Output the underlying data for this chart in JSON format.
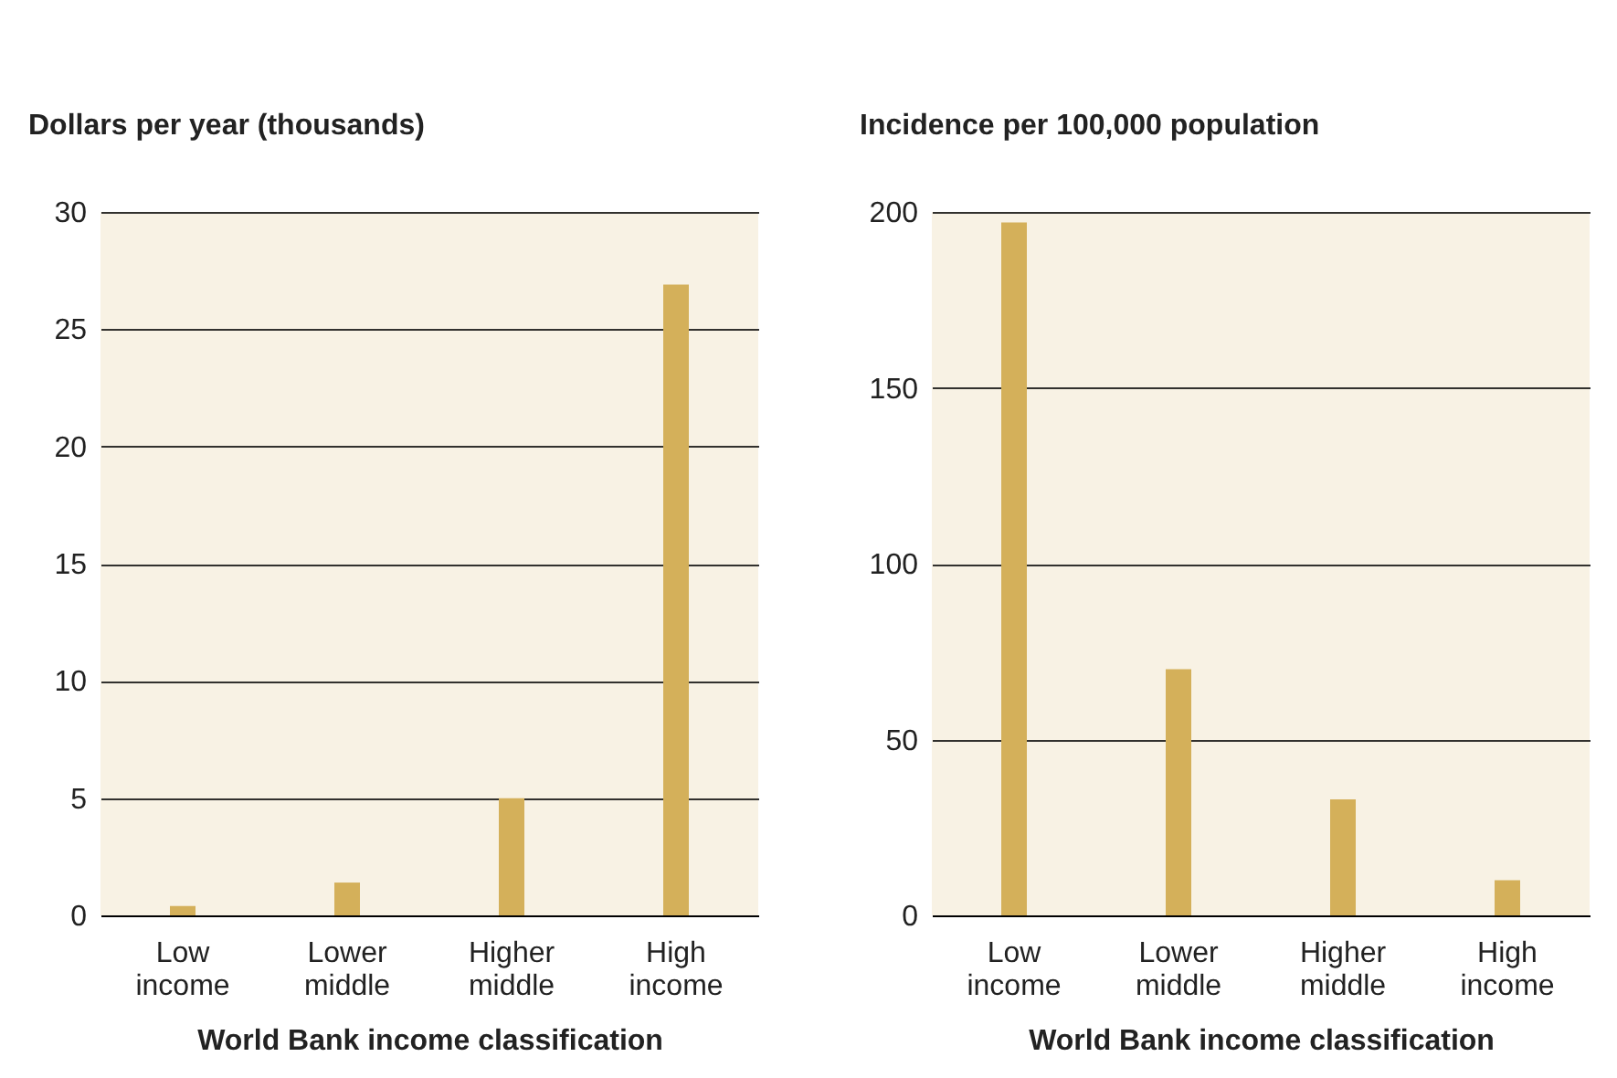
{
  "chart_data": [
    {
      "type": "bar",
      "ylabel": "Dollars per year (thousands)",
      "xlabel": "World Bank income classification",
      "categories": [
        "Low income",
        "Lower middle",
        "Higher middle",
        "High income"
      ],
      "values": [
        0.4,
        1.4,
        5,
        26.9
      ],
      "color": "#d4b05a",
      "ylim": [
        0,
        30
      ],
      "yticks": [
        0,
        5,
        10,
        15,
        20,
        25,
        30
      ],
      "grid": "y"
    },
    {
      "type": "bar",
      "ylabel": "Incidence per 100,000 population",
      "xlabel": "World Bank income classification",
      "categories": [
        "Low income",
        "Lower middle",
        "Higher middle",
        "High income"
      ],
      "values": [
        197,
        70,
        33,
        10
      ],
      "color": "#d4b05a",
      "ylim": [
        0,
        200
      ],
      "yticks": [
        0,
        50,
        100,
        150,
        200
      ],
      "grid": "y"
    }
  ]
}
